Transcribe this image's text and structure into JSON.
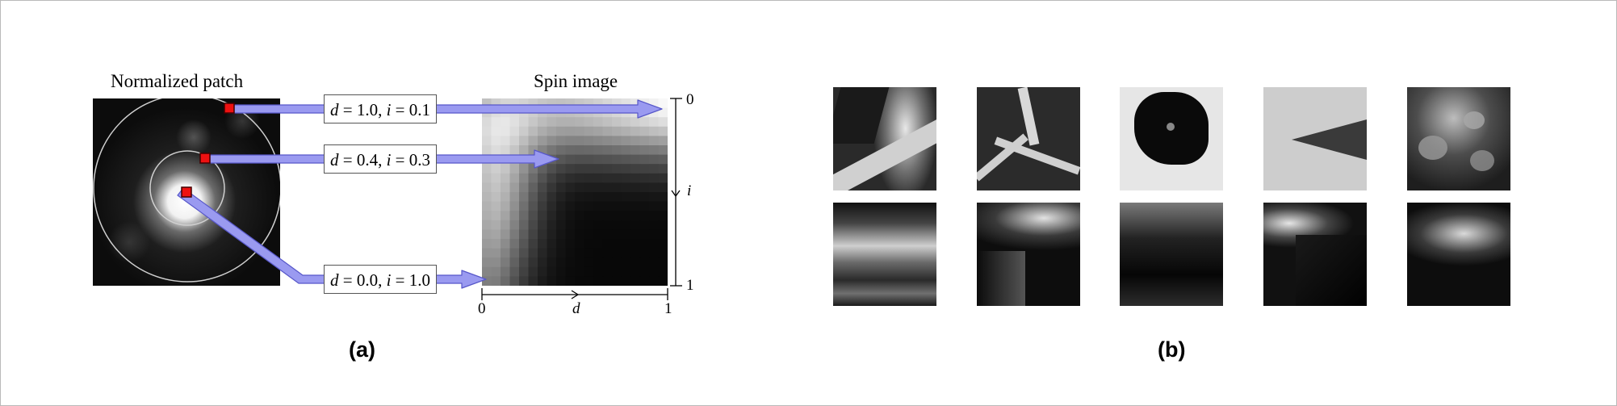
{
  "panel_a": {
    "caption": "(a)",
    "patch_title": "Normalized patch",
    "spin_title": "Spin image",
    "labels": [
      {
        "d_name": "d",
        "d_value": "= 1.0,",
        "i_name": "i",
        "i_value": "= 0.1"
      },
      {
        "d_name": "d",
        "d_value": "= 0.4,",
        "i_name": "i",
        "i_value": "= 0.3"
      },
      {
        "d_name": "d",
        "d_value": "= 0.0,",
        "i_name": "i",
        "i_value": "= 1.0"
      }
    ],
    "axis": {
      "i_top": "0",
      "i_bottom": "1",
      "i_name": "i",
      "d_left": "0",
      "d_right": "1",
      "d_name": "d"
    },
    "colors": {
      "arrow": "#9a9af0",
      "marker": "#ee1111"
    }
  },
  "panel_b": {
    "caption": "(b)",
    "top_row_count": 5,
    "bottom_row_count": 5
  }
}
